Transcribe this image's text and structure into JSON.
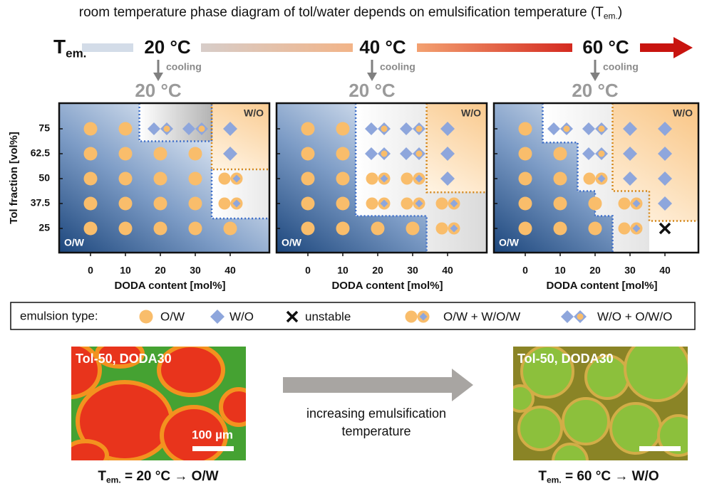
{
  "header": {
    "title": "room temperature phase diagram of tol/water depends on emulsification temperature (",
    "title_symbol": "T",
    "title_subscript": "em.",
    "title_close": ")"
  },
  "temperature_bar": {
    "symbol": "T",
    "subscript": "em.",
    "steps": [
      {
        "temperature": "20 °C",
        "process": "cooling",
        "result": "20 °C"
      },
      {
        "temperature": "40 °C",
        "process": "cooling",
        "result": "20 °C"
      },
      {
        "temperature": "60 °C",
        "process": "cooling",
        "result": "20 °C"
      }
    ]
  },
  "phase_diagrams": {
    "y_label": "Tol fraction [vol%]",
    "yticks": [
      25,
      37.5,
      50,
      62.5,
      75
    ],
    "panels": [
      {
        "x_label": "DODA content [mol%]",
        "xticks": [
          0,
          10,
          20,
          30,
          40
        ],
        "region_labels": [
          "W/O",
          "O/W"
        ],
        "grid": [
          [
            "O/W",
            "O/W",
            "O/W",
            "O/W",
            "O/W"
          ],
          [
            "O/W",
            "O/W",
            "O/W",
            "O/W",
            "O/W + W/O/W"
          ],
          [
            "O/W",
            "O/W",
            "O/W",
            "O/W",
            "O/W + W/O/W"
          ],
          [
            "O/W",
            "O/W",
            "O/W",
            "O/W",
            "W/O"
          ],
          [
            "O/W",
            "O/W",
            "W/O + O/W/O",
            "W/O + O/W/O",
            "W/O"
          ]
        ]
      },
      {
        "x_label": "DODA content [mol%]",
        "xticks": [
          0,
          10,
          20,
          30,
          40
        ],
        "region_labels": [
          "W/O",
          "O/W"
        ],
        "grid": [
          [
            "O/W",
            "O/W",
            "O/W",
            "O/W",
            "O/W + W/O/W"
          ],
          [
            "O/W",
            "O/W",
            "O/W + W/O/W",
            "O/W + W/O/W",
            "O/W + W/O/W"
          ],
          [
            "O/W",
            "O/W",
            "O/W + W/O/W",
            "O/W + W/O/W",
            "W/O"
          ],
          [
            "O/W",
            "O/W",
            "W/O + O/W/O",
            "W/O + O/W/O",
            "W/O"
          ],
          [
            "O/W",
            "O/W",
            "W/O + O/W/O",
            "W/O + O/W/O",
            "W/O"
          ]
        ]
      },
      {
        "x_label": "DODA content [mol%]",
        "xticks": [
          0,
          10,
          20,
          30,
          40
        ],
        "region_labels": [
          "W/O",
          "O/W"
        ],
        "grid": [
          [
            "O/W",
            "O/W",
            "O/W",
            "O/W + W/O/W",
            "unstable"
          ],
          [
            "O/W",
            "O/W",
            "O/W",
            "O/W + W/O/W",
            "W/O"
          ],
          [
            "O/W",
            "O/W",
            "O/W + W/O/W",
            "W/O",
            "W/O"
          ],
          [
            "O/W",
            "O/W",
            "W/O + O/W/O",
            "W/O",
            "W/O"
          ],
          [
            "O/W",
            "W/O + O/W/O",
            "W/O + O/W/O",
            "W/O",
            "W/O"
          ]
        ]
      }
    ]
  },
  "legend": {
    "title": "emulsion type:",
    "entries": [
      "O/W",
      "W/O",
      "unstable",
      "O/W + W/O/W",
      "W/O + O/W/O"
    ]
  },
  "micrographs": [
    {
      "label": "Tol-50, DODA30",
      "scale": "100 µm",
      "caption": {
        "symbol": "T",
        "subscript": "em.",
        "text": " = 20 °C → O/W"
      }
    },
    {
      "label": "Tol-50, DODA30",
      "caption": {
        "symbol": "T",
        "subscript": "em.",
        "text": " = 60 °C → W/O"
      }
    }
  ],
  "arrow": {
    "lines": [
      "increasing emulsification",
      "temperature"
    ]
  }
}
